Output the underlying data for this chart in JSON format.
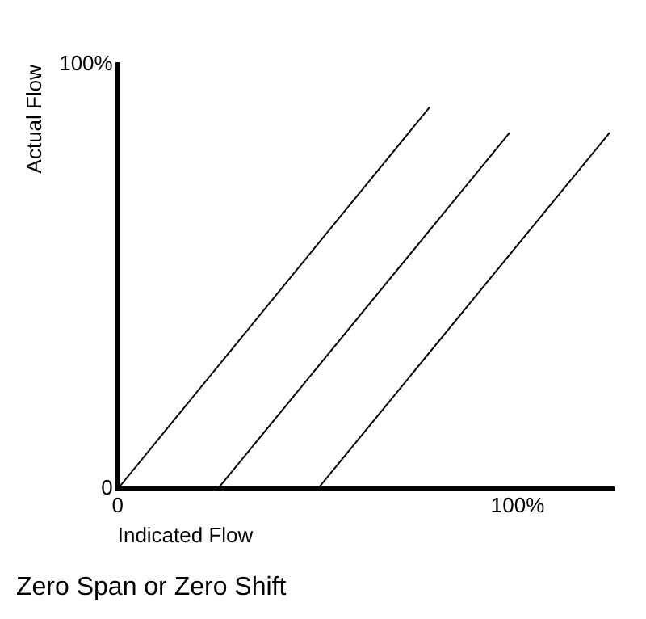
{
  "chart_data": {
    "type": "line",
    "title": "Zero Span or Zero Shift",
    "xlabel": "Indicated Flow",
    "ylabel": "Actual Flow",
    "series": [
      {
        "x": [
          0,
          78
        ],
        "values": [
          0,
          90
        ],
        "color": "#000000"
      },
      {
        "x": [
          25,
          98
        ],
        "values": [
          0,
          84
        ],
        "color": "#000000"
      },
      {
        "x": [
          50,
          123
        ],
        "values": [
          0,
          84
        ],
        "color": "#000000"
      }
    ],
    "xlim": [
      0,
      124
    ],
    "xticks": [
      0,
      {
        "value": 100,
        "label": "100%"
      }
    ],
    "ylim": [
      0,
      100
    ],
    "yticks": [
      0,
      {
        "value": 100,
        "label": "100%"
      }
    ],
    "grid": false,
    "legend": false,
    "marker": "none",
    "line_style": "solid"
  }
}
